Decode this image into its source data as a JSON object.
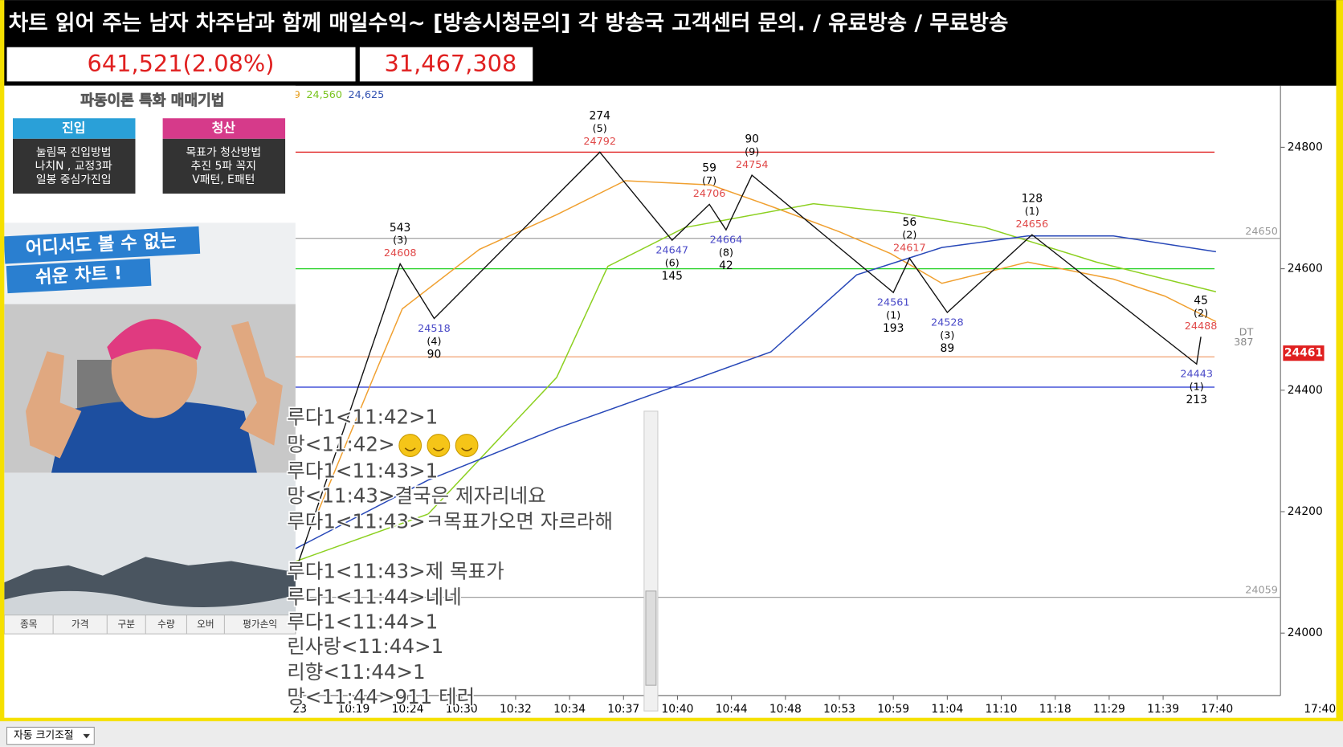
{
  "header": {
    "title": "차트 읽어 주는 남자 차주남과 함께 매일수익~ [방송시청문의] 각 방송국 고객센터 문의. / 유료방송 / 무료방송",
    "index_value": "641,521(2.08%)",
    "volume": "31,467,308"
  },
  "promo": {
    "title": "파동이론 특화 매매기법",
    "entry": {
      "label": "진입",
      "lines": [
        "눌림목 진입방법",
        "나치N , 교정3파",
        "일봉 중심가진입"
      ]
    },
    "exit": {
      "label": "청산",
      "lines": [
        "목표가 청산방법",
        "추진 5파 꼭지",
        "V패턴, E패턴"
      ]
    },
    "slogan": [
      "어디서도 볼 수 없는",
      "쉬운 차트 !"
    ]
  },
  "table_headers": [
    "종목",
    "가격",
    "구분",
    "수량",
    "오버",
    "평가손익"
  ],
  "chat": [
    "루다1<11:42>1",
    "망<11:42>",
    "루다1<11:43>1",
    "망<11:43>결국은 제자리네요",
    "루다1<11:43>ㅋ목표가오면 자르라해",
    "루다1<11:43>제 목표가",
    "루다1<11:44>네네",
    "루다1<11:44>1",
    "린사랑<11:44>1",
    "리향<11:44>1",
    "망<11:44>911 테러"
  ],
  "footer": {
    "auto_resize": "자동 크기조절"
  },
  "chart_data": {
    "type": "line",
    "ma_legend": [
      {
        "label": "9",
        "color": "#e8a020"
      },
      {
        "label": "24,560",
        "color": "#7ac41e"
      },
      {
        "label": "24,625",
        "color": "#3050b0"
      }
    ],
    "categories": [
      "23",
      "10:19",
      "10:24",
      "10:30",
      "10:32",
      "10:34",
      "10:37",
      "10:40",
      "10:44",
      "10:48",
      "10:53",
      "10:59",
      "11:04",
      "11:10",
      "11:18",
      "11:29",
      "11:39",
      "17:40"
    ],
    "x_end_label": "17:40",
    "ylim": [
      23900,
      24900
    ],
    "yticks": [
      24000,
      24200,
      24400,
      24600,
      24800
    ],
    "series": [
      {
        "color": "#f0a030",
        "x": [
          0.32,
          1.43,
          1.9,
          3.33,
          4.76,
          6.03,
          7.62,
          8.73,
          10.0,
          10.95,
          11.9,
          13.49,
          15.08,
          16.03,
          16.98
        ],
        "values": [
          24196,
          24435,
          24534,
          24632,
          24689,
          24745,
          24738,
          24703,
          24661,
          24625,
          24576,
          24611,
          24583,
          24555,
          24513
        ]
      },
      {
        "color": "#8cd020",
        "x": [
          -0.08,
          2.38,
          4.76,
          5.71,
          7.14,
          9.52,
          11.11,
          12.7,
          14.76,
          16.98
        ],
        "values": [
          24118,
          24196,
          24421,
          24604,
          24668,
          24707,
          24692,
          24668,
          24611,
          24562
        ]
      },
      {
        "color": "#2848b8",
        "x": [
          -0.08,
          2.38,
          4.76,
          6.98,
          8.73,
          10.32,
          11.9,
          13.49,
          15.08,
          16.98
        ],
        "values": [
          24139,
          24252,
          24337,
          24407,
          24463,
          24590,
          24635,
          24654,
          24654,
          24628
        ]
      }
    ],
    "zigzag": {
      "color": "#111111",
      "x": [
        -0.05,
        1.86,
        2.49,
        5.56,
        6.9,
        7.59,
        7.9,
        8.38,
        11.0,
        11.3,
        12.0,
        13.57,
        16.62,
        16.7
      ],
      "values": [
        24110,
        24608,
        24518,
        24792,
        24647,
        24706,
        24664,
        24754,
        24561,
        24617,
        24528,
        24656,
        24443,
        24488
      ],
      "pivot_labels": [
        null,
        {
          "count": "543",
          "wave": "(3)"
        },
        {
          "count": "90",
          "wave": "(4)"
        },
        {
          "count": "274",
          "wave": "(5)"
        },
        {
          "count": "145",
          "wave": "(6)"
        },
        {
          "count": "59",
          "wave": "(7)"
        },
        {
          "count": "42",
          "wave": "(8)"
        },
        {
          "count": "90",
          "wave": "(9)"
        },
        {
          "count": "193",
          "wave": "(1)"
        },
        {
          "count": "56",
          "wave": "(2)"
        },
        {
          "count": "89",
          "wave": "(3)"
        },
        {
          "count": "128",
          "wave": "(1)"
        },
        {
          "count": "213",
          "wave": "(1)"
        },
        {
          "count": "45",
          "wave": "(2)"
        }
      ]
    },
    "levels": [
      {
        "value": 24792,
        "color": "#e02020",
        "labeled": false
      },
      {
        "value": 24650,
        "color": "#a0a0a0",
        "labeled": true
      },
      {
        "value": 24600,
        "color": "#20d020",
        "labeled": false
      },
      {
        "value": 24455,
        "color": "#f0a070",
        "labeled": false
      },
      {
        "value": 24405,
        "color": "#2030d0",
        "labeled": false
      },
      {
        "value": 24059,
        "color": "#a0a0a0",
        "labeled": true
      }
    ],
    "current_price": 24461,
    "dt_label": "DT",
    "dt_value": 387
  }
}
